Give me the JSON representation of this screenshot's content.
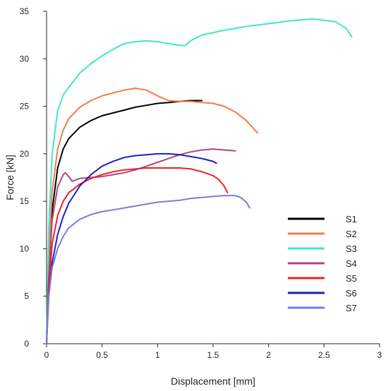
{
  "chart_data": {
    "type": "line",
    "xlabel": "Displacement [mm]",
    "ylabel": "Force [kN]",
    "xlim": [
      0,
      3
    ],
    "ylim": [
      0,
      35
    ],
    "xticks": [
      0,
      0.5,
      1,
      1.5,
      2,
      2.5,
      3
    ],
    "xtick_labels": [
      "0",
      "0.5",
      "1",
      "1.5",
      "2",
      "2.5",
      "3"
    ],
    "yticks": [
      0,
      5,
      10,
      15,
      20,
      25,
      30,
      35
    ],
    "ytick_labels": [
      "0",
      "5",
      "10",
      "15",
      "20",
      "25",
      "30",
      "35"
    ],
    "grid": false,
    "legend_position": "right",
    "series": [
      {
        "name": "S1",
        "color": "#000000",
        "x": [
          0,
          0.02,
          0.05,
          0.1,
          0.15,
          0.2,
          0.3,
          0.4,
          0.5,
          0.6,
          0.7,
          0.8,
          0.9,
          1.0,
          1.1,
          1.2,
          1.3,
          1.4
        ],
        "y": [
          0,
          8,
          14,
          18.5,
          20.5,
          21.6,
          22.8,
          23.5,
          24.0,
          24.3,
          24.6,
          24.9,
          25.1,
          25.3,
          25.4,
          25.5,
          25.6,
          25.6
        ]
      },
      {
        "name": "S2",
        "color": "#f37b4c",
        "x": [
          0,
          0.02,
          0.05,
          0.1,
          0.15,
          0.2,
          0.3,
          0.4,
          0.5,
          0.6,
          0.7,
          0.8,
          0.9,
          1.0,
          1.1,
          1.2,
          1.3,
          1.4,
          1.5,
          1.6,
          1.7,
          1.8,
          1.9
        ],
        "y": [
          0,
          9,
          16,
          20.5,
          22.5,
          23.7,
          24.9,
          25.6,
          26.1,
          26.4,
          26.7,
          26.9,
          26.7,
          26.1,
          25.6,
          25.5,
          25.5,
          25.4,
          25.3,
          25.0,
          24.4,
          23.5,
          22.2
        ]
      },
      {
        "name": "S3",
        "color": "#3ee8c4",
        "x": [
          0,
          0.02,
          0.05,
          0.1,
          0.15,
          0.2,
          0.3,
          0.4,
          0.5,
          0.6,
          0.7,
          0.8,
          0.9,
          1.0,
          1.1,
          1.2,
          1.25,
          1.3,
          1.4,
          1.6,
          1.8,
          2.0,
          2.2,
          2.4,
          2.6,
          2.7,
          2.75
        ],
        "y": [
          0,
          12,
          20,
          24.5,
          26.2,
          27.0,
          28.5,
          29.5,
          30.3,
          31.0,
          31.6,
          31.8,
          31.9,
          31.8,
          31.6,
          31.4,
          31.4,
          31.9,
          32.5,
          33.0,
          33.4,
          33.7,
          34.0,
          34.2,
          33.9,
          33.2,
          32.3
        ]
      },
      {
        "name": "S4",
        "color": "#b0457c",
        "x": [
          0,
          0.02,
          0.05,
          0.1,
          0.15,
          0.17,
          0.2,
          0.23,
          0.3,
          0.4,
          0.5,
          0.6,
          0.7,
          0.8,
          0.9,
          1.0,
          1.1,
          1.2,
          1.3,
          1.4,
          1.5,
          1.6,
          1.7
        ],
        "y": [
          0,
          7,
          13,
          16.5,
          17.8,
          18.0,
          17.6,
          17.1,
          17.4,
          17.5,
          17.6,
          17.8,
          18.0,
          18.3,
          18.7,
          19.1,
          19.5,
          19.9,
          20.2,
          20.4,
          20.5,
          20.4,
          20.3
        ]
      },
      {
        "name": "S5",
        "color": "#e8232a",
        "x": [
          0,
          0.02,
          0.05,
          0.1,
          0.15,
          0.2,
          0.3,
          0.4,
          0.5,
          0.6,
          0.7,
          0.8,
          0.9,
          1.0,
          1.1,
          1.2,
          1.3,
          1.4,
          1.5,
          1.55,
          1.6,
          1.63
        ],
        "y": [
          0,
          6,
          10.5,
          13.5,
          15.0,
          15.9,
          16.8,
          17.4,
          17.8,
          18.1,
          18.3,
          18.4,
          18.5,
          18.5,
          18.5,
          18.5,
          18.4,
          18.1,
          17.7,
          17.3,
          16.6,
          15.9
        ]
      },
      {
        "name": "S6",
        "color": "#1f1fbf",
        "x": [
          0,
          0.02,
          0.05,
          0.1,
          0.15,
          0.2,
          0.3,
          0.4,
          0.5,
          0.6,
          0.7,
          0.8,
          0.9,
          1.0,
          1.1,
          1.2,
          1.3,
          1.4,
          1.5,
          1.53
        ],
        "y": [
          0,
          5,
          8.5,
          11.5,
          13.4,
          14.8,
          16.6,
          17.8,
          18.7,
          19.2,
          19.6,
          19.8,
          19.9,
          20.0,
          20.0,
          19.9,
          19.7,
          19.5,
          19.2,
          19.0
        ]
      },
      {
        "name": "S7",
        "color": "#7b7bdc",
        "x": [
          0,
          0.02,
          0.05,
          0.1,
          0.15,
          0.2,
          0.3,
          0.4,
          0.5,
          0.6,
          0.7,
          0.8,
          0.9,
          1.0,
          1.1,
          1.2,
          1.3,
          1.4,
          1.5,
          1.6,
          1.7,
          1.75,
          1.8,
          1.83
        ],
        "y": [
          0,
          5,
          8,
          10.0,
          11.3,
          12.2,
          13.1,
          13.6,
          13.9,
          14.1,
          14.3,
          14.5,
          14.7,
          14.9,
          15.0,
          15.1,
          15.3,
          15.4,
          15.5,
          15.6,
          15.6,
          15.4,
          14.9,
          14.3
        ]
      }
    ]
  }
}
